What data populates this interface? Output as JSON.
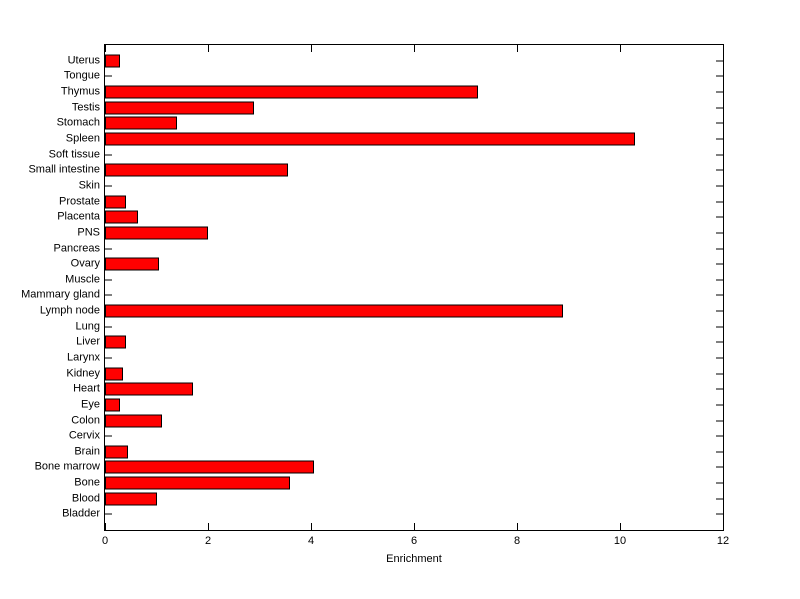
{
  "chart_data": {
    "type": "bar",
    "orientation": "horizontal",
    "title": "",
    "xlabel": "Enrichment",
    "ylabel": "",
    "xlim": [
      0,
      12
    ],
    "xticks": [
      0,
      2,
      4,
      6,
      8,
      10,
      12
    ],
    "grid": false,
    "legend": "none",
    "bar_color": "#ff0000",
    "bar_edge_color": "#000000",
    "axis_color": "#000000",
    "background_color": "#ffffff",
    "categories": [
      "Uterus",
      "Tongue",
      "Thymus",
      "Testis",
      "Stomach",
      "Spleen",
      "Soft tissue",
      "Small intestine",
      "Skin",
      "Prostate",
      "Placenta",
      "PNS",
      "Pancreas",
      "Ovary",
      "Muscle",
      "Mammary gland",
      "Lymph node",
      "Lung",
      "Liver",
      "Larynx",
      "Kidney",
      "Heart",
      "Eye",
      "Colon",
      "Cervix",
      "Brain",
      "Bone marrow",
      "Bone",
      "Blood",
      "Bladder"
    ],
    "values": [
      0.3,
      0,
      7.25,
      2.9,
      1.4,
      10.3,
      0,
      3.55,
      0,
      0.4,
      0.65,
      2.0,
      0,
      1.05,
      0,
      0,
      8.9,
      0,
      0.4,
      0,
      0.35,
      1.7,
      0.3,
      1.1,
      0,
      0.45,
      4.05,
      3.6,
      1.0,
      0
    ]
  }
}
